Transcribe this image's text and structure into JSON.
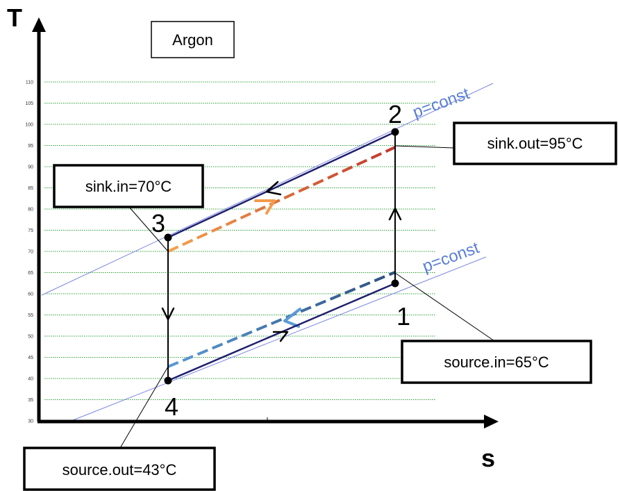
{
  "gas_label": "Argon",
  "axes": {
    "y_label": "T",
    "x_label": "s"
  },
  "temperature_ticks": [
    30,
    35,
    40,
    45,
    50,
    55,
    60,
    65,
    70,
    75,
    80,
    85,
    90,
    95,
    100,
    105,
    110
  ],
  "state_points": [
    {
      "id": "1",
      "label": "1",
      "T": 62
    },
    {
      "id": "2",
      "label": "2",
      "T": 98
    },
    {
      "id": "3",
      "label": "3",
      "T": 73
    },
    {
      "id": "4",
      "label": "4",
      "T": 40
    }
  ],
  "isobar_labels": {
    "upper": "p=const",
    "lower": "p=const"
  },
  "callouts": {
    "sink_out": "sink.out=95°C",
    "sink_in": "sink.in=70°C",
    "source_in": "source.in=65°C",
    "source_out": "source.out=43°C"
  },
  "fluid_streams": {
    "sink": {
      "T_in": 70,
      "T_out": 95,
      "colors": [
        "#f39a4a",
        "#c0392b"
      ]
    },
    "source": {
      "T_in": 65,
      "T_out": 43,
      "colors": [
        "#2e4f7f",
        "#5b9bd5"
      ]
    }
  },
  "colors": {
    "cycle": "#1f1f6e",
    "grid": "#2e9e3a",
    "isobar": "#7b86e0",
    "arrow_orange": "#f39a4a",
    "arrow_blue": "#5b9bd5"
  }
}
